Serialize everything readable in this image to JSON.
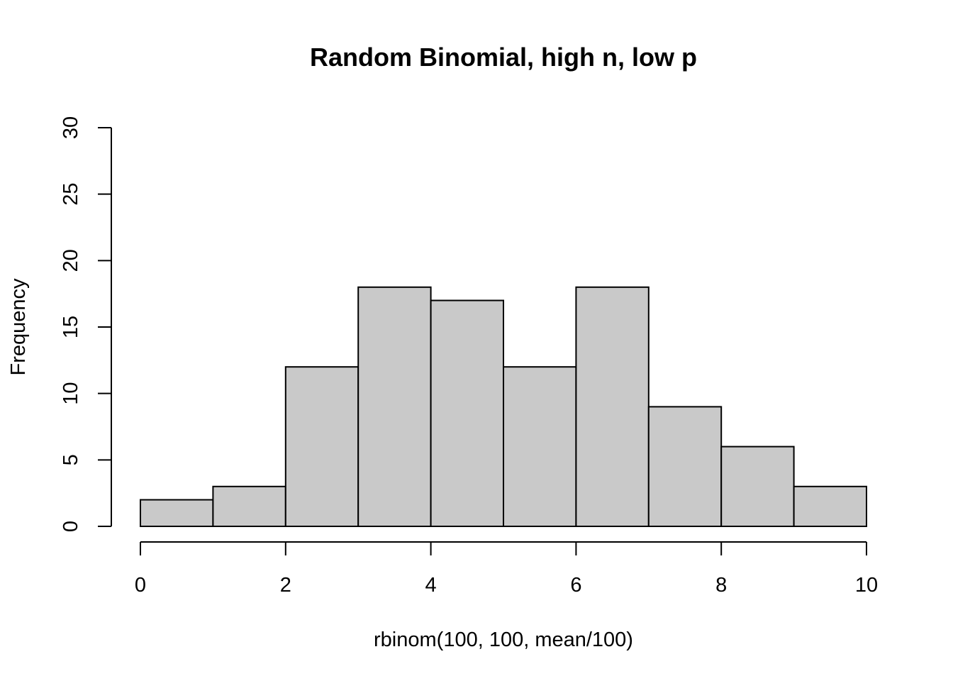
{
  "chart_data": {
    "type": "bar",
    "title": "Random Binomial, high n, low p",
    "xlabel": "rbinom(100, 100, mean/100)",
    "ylabel": "Frequency",
    "bins": [
      [
        0,
        1
      ],
      [
        1,
        2
      ],
      [
        2,
        3
      ],
      [
        3,
        4
      ],
      [
        4,
        5
      ],
      [
        5,
        6
      ],
      [
        6,
        7
      ],
      [
        7,
        8
      ],
      [
        8,
        9
      ],
      [
        9,
        10
      ]
    ],
    "values": [
      2,
      3,
      12,
      18,
      17,
      12,
      18,
      9,
      6,
      3
    ],
    "xlim": [
      0,
      10
    ],
    "ylim": [
      0,
      30
    ],
    "xticks": [
      "0",
      "2",
      "4",
      "6",
      "8",
      "10"
    ],
    "yticks": [
      "0",
      "5",
      "10",
      "15",
      "20",
      "25",
      "30"
    ],
    "grid": false,
    "legend": "none",
    "bar_color": "#c9c9c9",
    "edge_color": "#000000"
  }
}
